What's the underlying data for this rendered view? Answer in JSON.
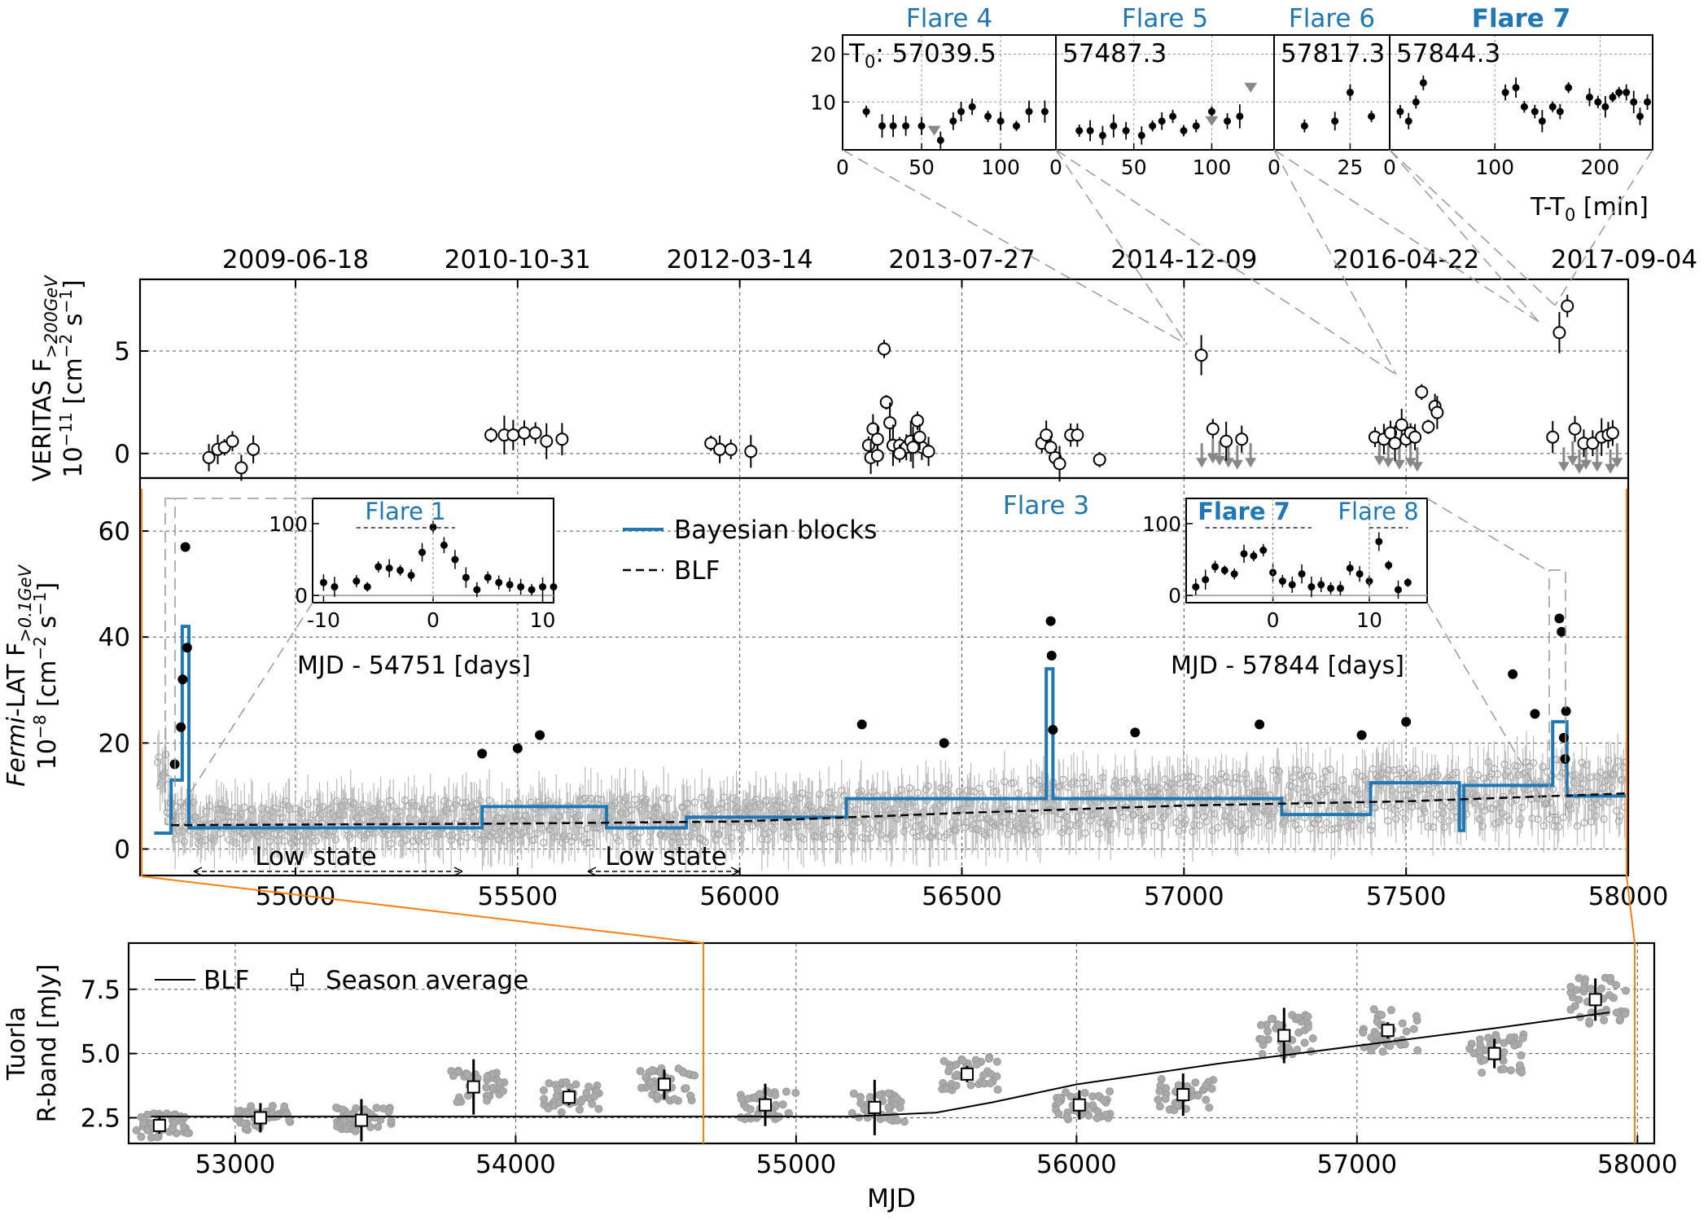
{
  "colors": {
    "bayes": "#1f77b4",
    "flare_label": "#1f77b4",
    "zoom_lines": "#ff7f0e",
    "faint_points": "#aaaaaa",
    "points": "#000000",
    "grid": "#555555",
    "connector": "#999999"
  },
  "chart_data": [
    {
      "id": "veritas",
      "type": "scatter",
      "ylabel_line1": "VERITAS F",
      "ylabel_sub": ">200GeV",
      "ylabel_line2_prefix": "10",
      "ylabel_line2_exp": "−11",
      "ylabel_line2_rest": " [cm",
      "ylabel_line2_exp2": "−2",
      "ylabel_line2_rest2": " s",
      "ylabel_line2_exp3": "−1",
      "ylabel_line2_end": "]",
      "xlim": [
        54650,
        58000
      ],
      "ylim": [
        -1.2,
        8.5
      ],
      "yticks": [
        0,
        5
      ],
      "top_date_ticks": [
        {
          "mjd": 55000,
          "label": "2009-06-18"
        },
        {
          "mjd": 55500,
          "label": "2010-10-31"
        },
        {
          "mjd": 56000,
          "label": "2012-03-14"
        },
        {
          "mjd": 56500,
          "label": "2013-07-27"
        },
        {
          "mjd": 57000,
          "label": "2014-12-09"
        },
        {
          "mjd": 57500,
          "label": "2016-04-22"
        },
        {
          "mjd": 58000,
          "label": "2017-09-04"
        }
      ],
      "points": [
        [
          54805,
          -0.2
        ],
        [
          54825,
          0.2
        ],
        [
          54840,
          0.3
        ],
        [
          54858,
          0.6
        ],
        [
          54878,
          -0.7
        ],
        [
          54905,
          0.2
        ],
        [
          55440,
          0.9
        ],
        [
          55470,
          0.9
        ],
        [
          55490,
          0.9
        ],
        [
          55515,
          1.0
        ],
        [
          55540,
          1.0
        ],
        [
          55565,
          0.6
        ],
        [
          55600,
          0.7
        ],
        [
          55935,
          0.5
        ],
        [
          55955,
          0.2
        ],
        [
          55980,
          0.2
        ],
        [
          56025,
          0.1
        ],
        [
          56290,
          0.4
        ],
        [
          56300,
          1.2
        ],
        [
          56310,
          0.7
        ],
        [
          56325,
          5.1
        ],
        [
          56330,
          2.5
        ],
        [
          56338,
          1.5
        ],
        [
          56345,
          0.4
        ],
        [
          56360,
          0.4
        ],
        [
          56375,
          0.3
        ],
        [
          56385,
          0.6
        ],
        [
          56400,
          1.6
        ],
        [
          56410,
          0.3
        ],
        [
          56425,
          0.1
        ],
        [
          56295,
          -0.2
        ],
        [
          56310,
          -0.1
        ],
        [
          56360,
          0.0
        ],
        [
          56390,
          0.3
        ],
        [
          56405,
          0.8
        ],
        [
          56680,
          0.5
        ],
        [
          56690,
          0.9
        ],
        [
          56700,
          0.3
        ],
        [
          56710,
          -0.2
        ],
        [
          56720,
          -0.5
        ],
        [
          56745,
          0.9
        ],
        [
          56760,
          0.9
        ],
        [
          56810,
          -0.3
        ],
        [
          57039,
          4.8
        ],
        [
          57065,
          1.2
        ],
        [
          57095,
          0.6
        ],
        [
          57130,
          0.7
        ],
        [
          57430,
          0.8
        ],
        [
          57450,
          0.7
        ],
        [
          57465,
          1.0
        ],
        [
          57475,
          0.5
        ],
        [
          57490,
          1.4
        ],
        [
          57500,
          0.7
        ],
        [
          57510,
          1.0
        ],
        [
          57520,
          0.8
        ],
        [
          57535,
          3.0
        ],
        [
          57550,
          1.3
        ],
        [
          57565,
          2.3
        ],
        [
          57570,
          2.0
        ],
        [
          57830,
          0.8
        ],
        [
          57845,
          5.9
        ],
        [
          57863,
          7.2
        ],
        [
          57880,
          1.2
        ],
        [
          57900,
          0.5
        ],
        [
          57920,
          0.5
        ],
        [
          57940,
          0.8
        ],
        [
          57955,
          0.9
        ],
        [
          57965,
          1.0
        ]
      ],
      "upper_limits": [
        [
          57040,
          0.5
        ],
        [
          57065,
          0.7
        ],
        [
          57080,
          0.6
        ],
        [
          57100,
          0.5
        ],
        [
          57120,
          0.4
        ],
        [
          57150,
          0.5
        ],
        [
          57440,
          0.6
        ],
        [
          57460,
          0.5
        ],
        [
          57485,
          0.4
        ],
        [
          57510,
          0.5
        ],
        [
          57525,
          0.3
        ],
        [
          57855,
          0.3
        ],
        [
          57875,
          0.6
        ],
        [
          57890,
          0.2
        ],
        [
          57905,
          0.4
        ],
        [
          57930,
          0.3
        ],
        [
          57960,
          0.2
        ],
        [
          57975,
          0.5
        ]
      ]
    },
    {
      "id": "fermi",
      "type": "scatter",
      "ylabel_line1_italic": "Fermi",
      "ylabel_line1_rest": "-LAT F",
      "ylabel_sub": ">0.1GeV",
      "ylabel_line2_prefix": "10",
      "ylabel_line2_exp": "−8",
      "ylabel_line2_rest": " [cm",
      "ylabel_line2_exp2": "−2",
      "ylabel_line2_rest2": " s",
      "ylabel_line2_exp3": "−1",
      "ylabel_line2_end": "]",
      "xlim": [
        54650,
        58000
      ],
      "ylim": [
        -5,
        70
      ],
      "xticks": [
        55000,
        55500,
        56000,
        56500,
        57000,
        57500,
        58000
      ],
      "yticks": [
        0,
        20,
        40,
        60
      ],
      "legend": [
        {
          "label": "Bayesian blocks",
          "style": "solid-blue"
        },
        {
          "label": "BLF",
          "style": "dashed-black"
        }
      ],
      "flare_labels": [
        "Flare 3"
      ],
      "low_state_labels": [
        "Low state",
        "Low state"
      ],
      "bayesian_blocks": [
        [
          54682,
          3
        ],
        [
          54720,
          13
        ],
        [
          54745,
          42
        ],
        [
          54760,
          4
        ],
        [
          55420,
          8
        ],
        [
          55700,
          4
        ],
        [
          55880,
          6
        ],
        [
          56240,
          9.5
        ],
        [
          56690,
          34
        ],
        [
          56705,
          9.5
        ],
        [
          57220,
          6.5
        ],
        [
          57420,
          12.5
        ],
        [
          57620,
          3.5
        ],
        [
          57630,
          12
        ],
        [
          57830,
          24
        ],
        [
          57862,
          10
        ],
        [
          58000,
          10
        ]
      ],
      "blf": [
        [
          54720,
          4.5
        ],
        [
          55500,
          4.8
        ],
        [
          56000,
          5.2
        ],
        [
          56500,
          6.8
        ],
        [
          57000,
          8.2
        ],
        [
          57500,
          9
        ],
        [
          58000,
          10.5
        ]
      ],
      "flare_points": [
        [
          54728,
          16
        ],
        [
          54742,
          23
        ],
        [
          54746,
          32
        ],
        [
          54752,
          57
        ],
        [
          54756,
          38
        ],
        [
          55420,
          18
        ],
        [
          55500,
          19
        ],
        [
          55550,
          21.5
        ],
        [
          56275,
          23.5
        ],
        [
          56460,
          20
        ],
        [
          56700,
          43
        ],
        [
          56702,
          36.5
        ],
        [
          56705,
          22.5
        ],
        [
          56890,
          22
        ],
        [
          57170,
          23.5
        ],
        [
          57400,
          21.5
        ],
        [
          57500,
          24
        ],
        [
          57740,
          33
        ],
        [
          57790,
          25.5
        ],
        [
          57845,
          43.5
        ],
        [
          57850,
          41
        ],
        [
          57855,
          21
        ],
        [
          57858,
          17
        ],
        [
          57860,
          26
        ]
      ]
    },
    {
      "id": "tuorla",
      "type": "scatter",
      "ylabel_line1": "Tuorla",
      "ylabel_line2": "R-band [mJy]",
      "xlabel": "MJD",
      "xlim": [
        52620,
        58060
      ],
      "ylim": [
        1.5,
        9.3
      ],
      "xticks": [
        53000,
        54000,
        55000,
        56000,
        57000,
        58000
      ],
      "yticks": [
        2.5,
        5.0,
        7.5
      ],
      "ytick_labels": [
        "2.5",
        "5.0",
        "7.5"
      ],
      "legend": [
        {
          "label": "BLF",
          "style": "solid-black"
        },
        {
          "label": "Season average",
          "style": "open-square-errorbar"
        }
      ],
      "season_average": [
        [
          52730,
          2.2
        ],
        [
          53090,
          2.5
        ],
        [
          53450,
          2.4
        ],
        [
          53850,
          3.7
        ],
        [
          54190,
          3.3
        ],
        [
          54530,
          3.8
        ],
        [
          54890,
          3.0
        ],
        [
          55280,
          2.9
        ],
        [
          55610,
          4.2
        ],
        [
          56010,
          3.0
        ],
        [
          56380,
          3.4
        ],
        [
          56740,
          5.7
        ],
        [
          57110,
          5.9
        ],
        [
          57490,
          5.0
        ],
        [
          57850,
          7.1
        ]
      ],
      "blf": [
        [
          52700,
          2.55
        ],
        [
          55200,
          2.55
        ],
        [
          55500,
          2.7
        ],
        [
          55700,
          3.1
        ],
        [
          56000,
          3.8
        ],
        [
          56500,
          4.6
        ],
        [
          57000,
          5.3
        ],
        [
          57500,
          6.0
        ],
        [
          57900,
          6.6
        ]
      ]
    }
  ],
  "insets": {
    "flare1": {
      "title": "Flare 1",
      "xlabel": "MJD - 54751 [days]",
      "xticks": [
        -10,
        0,
        10
      ],
      "yticks": [
        0,
        100
      ],
      "xlim": [
        -11,
        11
      ],
      "ylim": [
        -10,
        135
      ],
      "points": [
        [
          -10,
          18
        ],
        [
          -9,
          12
        ],
        [
          -7,
          20
        ],
        [
          -6,
          12
        ],
        [
          -5,
          40
        ],
        [
          -4,
          38
        ],
        [
          -3,
          35
        ],
        [
          -2,
          28
        ],
        [
          -1,
          60
        ],
        [
          0,
          95
        ],
        [
          1,
          70
        ],
        [
          2,
          50
        ],
        [
          3,
          25
        ],
        [
          4,
          8
        ],
        [
          5,
          25
        ],
        [
          6,
          18
        ],
        [
          7,
          15
        ],
        [
          8,
          12
        ],
        [
          9,
          8
        ],
        [
          10,
          12
        ],
        [
          11,
          12
        ]
      ]
    },
    "flare78": {
      "title_a": "Flare 7",
      "title_b": "Flare 8",
      "xlabel": "MJD - 57844 [days]",
      "xticks": [
        0,
        10
      ],
      "yticks": [
        0,
        100
      ],
      "xlim": [
        -9,
        16
      ],
      "ylim": [
        -10,
        135
      ],
      "points": [
        [
          -8,
          12
        ],
        [
          -7,
          22
        ],
        [
          -6,
          40
        ],
        [
          -5,
          35
        ],
        [
          -4,
          30
        ],
        [
          -3,
          58
        ],
        [
          -2,
          55
        ],
        [
          -1,
          63
        ],
        [
          0,
          32
        ],
        [
          1,
          20
        ],
        [
          2,
          15
        ],
        [
          3,
          30
        ],
        [
          4,
          12
        ],
        [
          5,
          15
        ],
        [
          6,
          10
        ],
        [
          7,
          10
        ],
        [
          8,
          38
        ],
        [
          9,
          30
        ],
        [
          10,
          20
        ],
        [
          11,
          75
        ],
        [
          12,
          42
        ],
        [
          13,
          8
        ],
        [
          14,
          18
        ]
      ]
    },
    "intraday": {
      "panels": [
        {
          "title": "Flare 4",
          "t0_prefix": "T",
          "t0_sub": "0",
          "t0_label": ": 57039.5",
          "xticks": [
            0,
            50,
            100
          ],
          "xlim": [
            0,
            135
          ],
          "points": [
            [
              15,
              8
            ],
            [
              25,
              5
            ],
            [
              32,
              5
            ],
            [
              40,
              5
            ],
            [
              50,
              5
            ],
            [
              62,
              2
            ],
            [
              70,
              6
            ],
            [
              75,
              8
            ],
            [
              82,
              9
            ],
            [
              92,
              7
            ],
            [
              100,
              6
            ],
            [
              110,
              5
            ],
            [
              118,
              8
            ],
            [
              128,
              8
            ]
          ],
          "ul": [
            [
              58,
              4
            ]
          ]
        },
        {
          "title": "Flare 5",
          "t0_label": "57487.3",
          "xticks": [
            0,
            50,
            100
          ],
          "xlim": [
            0,
            140
          ],
          "points": [
            [
              15,
              4
            ],
            [
              22,
              4
            ],
            [
              30,
              3
            ],
            [
              37,
              5
            ],
            [
              45,
              4
            ],
            [
              55,
              3
            ],
            [
              62,
              5
            ],
            [
              68,
              6
            ],
            [
              75,
              7
            ],
            [
              82,
              4
            ],
            [
              90,
              5
            ],
            [
              100,
              8
            ],
            [
              110,
              6
            ],
            [
              118,
              7
            ]
          ],
          "ul": [
            [
              100,
              6
            ],
            [
              125,
              13
            ]
          ]
        },
        {
          "title": "Flare 6",
          "t0_label": "57817.3",
          "xticks": [
            0,
            25
          ],
          "xlim": [
            0,
            38
          ],
          "points": [
            [
              10,
              5
            ],
            [
              20,
              6
            ],
            [
              25,
              12
            ],
            [
              32,
              7
            ]
          ],
          "ul": []
        },
        {
          "title": "Flare 7",
          "bold": true,
          "t0_label": "57844.3",
          "xticks": [
            0,
            100,
            200
          ],
          "xlim": [
            0,
            250
          ],
          "points": [
            [
              10,
              8
            ],
            [
              18,
              6
            ],
            [
              25,
              10
            ],
            [
              32,
              14
            ],
            [
              110,
              12
            ],
            [
              120,
              13
            ],
            [
              128,
              9
            ],
            [
              138,
              8
            ],
            [
              145,
              6
            ],
            [
              155,
              9
            ],
            [
              162,
              8
            ],
            [
              170,
              13
            ],
            [
              190,
              11
            ],
            [
              198,
              10
            ],
            [
              205,
              9
            ],
            [
              212,
              11
            ],
            [
              218,
              12
            ],
            [
              225,
              12
            ],
            [
              232,
              10
            ],
            [
              238,
              7
            ],
            [
              245,
              10
            ]
          ],
          "ul": []
        }
      ],
      "yticks": [
        10,
        20
      ],
      "ylim": [
        0,
        24
      ],
      "xlabel": "T-T",
      "xlabel_sub": "0",
      "xlabel_unit": " [min]"
    }
  }
}
